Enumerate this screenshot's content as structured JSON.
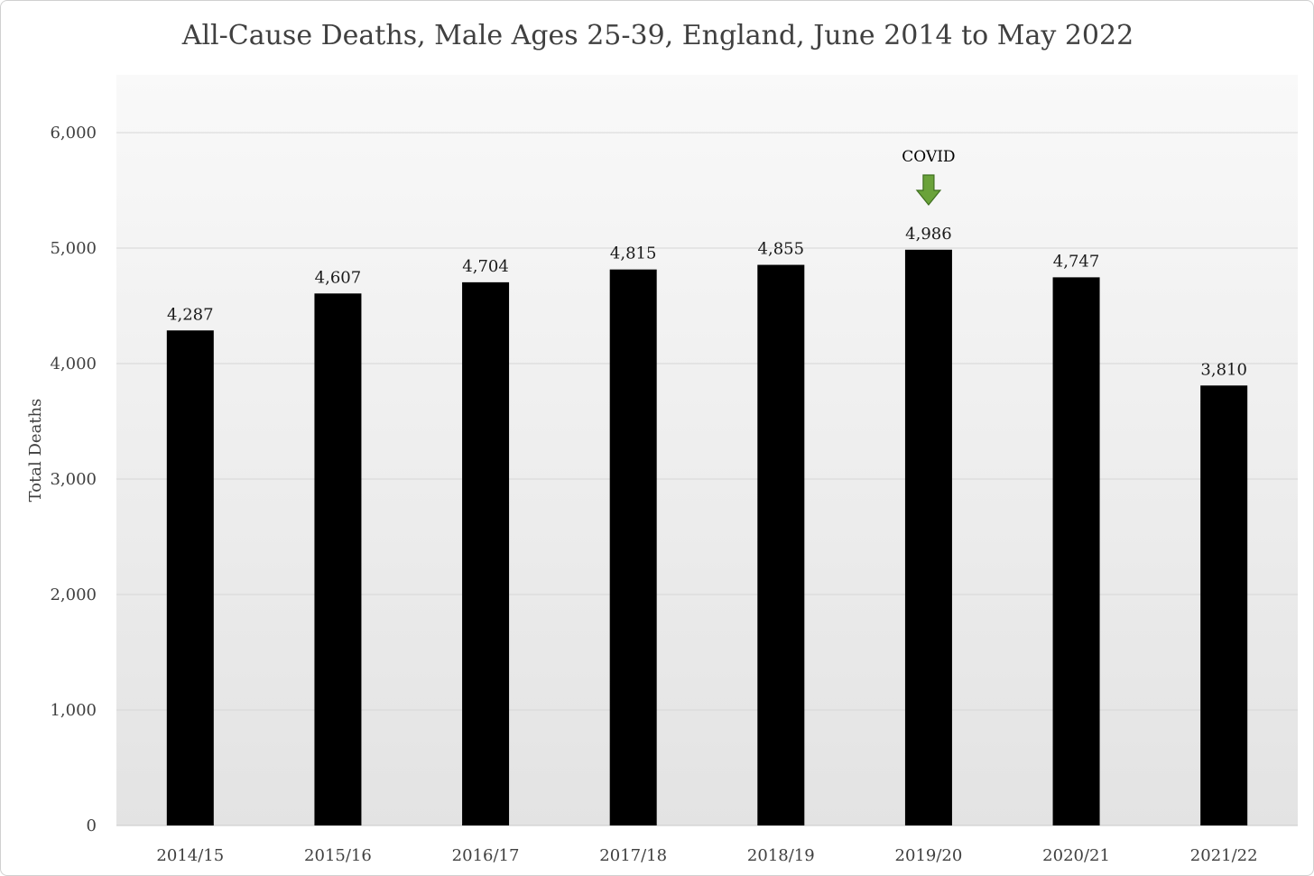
{
  "chart_data": {
    "type": "bar",
    "title": "All-Cause Deaths, Male Ages 25-39, England, June 2014 to May 2022",
    "xlabel": "",
    "ylabel": "Total Deaths",
    "categories": [
      "2014/15",
      "2015/16",
      "2016/17",
      "2017/18",
      "2018/19",
      "2019/20",
      "2020/21",
      "2021/22"
    ],
    "values": [
      4287,
      4607,
      4704,
      4815,
      4855,
      4986,
      4747,
      3810
    ],
    "data_labels": [
      "4,287",
      "4,607",
      "4,704",
      "4,815",
      "4,855",
      "4,986",
      "4,747",
      "3,810"
    ],
    "ylim": [
      0,
      6500
    ],
    "yticks": [
      0,
      1000,
      2000,
      3000,
      4000,
      5000,
      6000
    ],
    "ytick_labels": [
      "0",
      "1,000",
      "2,000",
      "3,000",
      "4,000",
      "5,000",
      "6,000"
    ],
    "grid": true,
    "legend": "none",
    "bar_color": "#000000",
    "annotation": {
      "text": "COVID",
      "category": "2019/20",
      "arrow_color": "#6aa23a",
      "icon": "down-arrow-icon"
    }
  }
}
